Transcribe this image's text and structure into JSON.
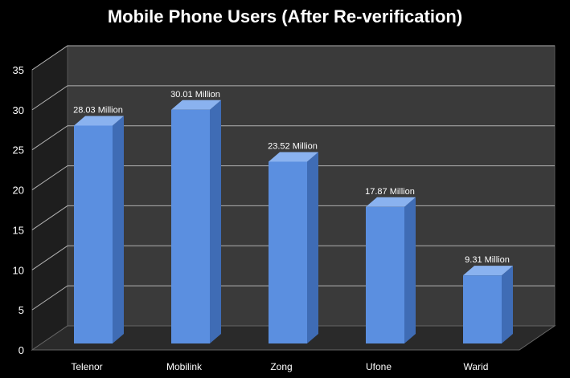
{
  "chart_data": {
    "type": "bar",
    "title": "Mobile Phone Users  (After Re-verification)",
    "xlabel": "",
    "ylabel": "",
    "categories": [
      "Telenor",
      "Mobilink",
      "Zong",
      "Ufone",
      "Warid"
    ],
    "values": [
      28.03,
      30.01,
      23.52,
      17.87,
      9.31
    ],
    "data_labels": [
      "28.03 Million",
      "30.01 Million",
      "23.52 Million",
      "17.87 Million",
      "9.31 Million"
    ],
    "ylim": [
      0,
      35
    ],
    "yticks": [
      "0",
      "5",
      "10",
      "15",
      "20",
      "25",
      "30",
      "35"
    ],
    "grid": true,
    "legend": "none",
    "style": "3d-column",
    "colors": {
      "background": "#000000",
      "wall": "#3a3a3a",
      "floor": "#2a2a2a",
      "bar_front": "#5b8fe0",
      "bar_side": "#3f6cb5",
      "bar_top": "#8ab2ef",
      "text": "#ffffff",
      "grid": "#b0b0b0"
    }
  }
}
